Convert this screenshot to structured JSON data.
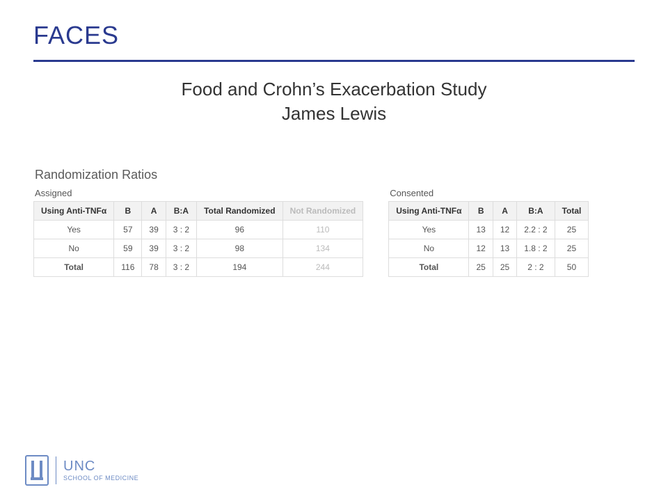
{
  "colors": {
    "title": "#2a3a8f",
    "rule": "#2a3a8f",
    "text": "#333333",
    "section": "#5a5a5a",
    "th_bg": "#f2f2f2",
    "th_text": "#333333",
    "cell_text": "#555555",
    "border": "#dddddd",
    "dim_text": "#bbbbbb",
    "logo": "#6d8bc4"
  },
  "header": {
    "title": "FACES",
    "subtitle_line1": "Food and Crohn’s Exacerbation Study",
    "subtitle_line2": "James Lewis"
  },
  "section_title": "Randomization Ratios",
  "tables": {
    "assigned": {
      "caption": "Assigned",
      "columns": [
        "Using Anti-TNFα",
        "B",
        "A",
        "B:A",
        "Total Randomized",
        "Not Randomized"
      ],
      "dim_column_index": 5,
      "rows": [
        [
          "Yes",
          "57",
          "39",
          "3 : 2",
          "96",
          "110"
        ],
        [
          "No",
          "59",
          "39",
          "3 : 2",
          "98",
          "134"
        ],
        [
          "Total",
          "116",
          "78",
          "3 : 2",
          "194",
          "244"
        ]
      ]
    },
    "consented": {
      "caption": "Consented",
      "columns": [
        "Using Anti-TNFα",
        "B",
        "A",
        "B:A",
        "Total"
      ],
      "dim_column_index": -1,
      "rows": [
        [
          "Yes",
          "13",
          "12",
          "2.2 : 2",
          "25"
        ],
        [
          "No",
          "12",
          "13",
          "1.8 : 2",
          "25"
        ],
        [
          "Total",
          "25",
          "25",
          "2 : 2",
          "50"
        ]
      ]
    }
  },
  "footer": {
    "line1": "UNC",
    "line2": "SCHOOL OF MEDICINE"
  }
}
